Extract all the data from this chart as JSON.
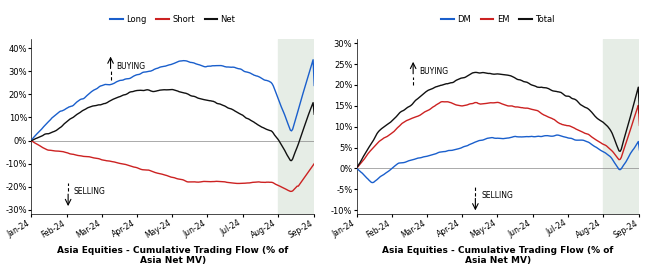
{
  "title": "Asia Equities - Cumulative Trading Flow (% of\nAsia Net MV)",
  "legend1": [
    "Long",
    "Short",
    "Net"
  ],
  "legend2": [
    "DM",
    "EM",
    "Total"
  ],
  "colors1": [
    "#1a5fcc",
    "#cc2222",
    "#111111"
  ],
  "colors2": [
    "#1a5fcc",
    "#cc2222",
    "#111111"
  ],
  "ylim1": [
    -32,
    44
  ],
  "ylim2": [
    -11,
    31
  ],
  "yticks1": [
    -30,
    -20,
    -10,
    0,
    10,
    20,
    30,
    40
  ],
  "yticks2": [
    -10,
    -5,
    0,
    5,
    10,
    15,
    20,
    25,
    30
  ],
  "xtick_labels": [
    "Jan-24",
    "Feb-24",
    "Mar-24",
    "Apr-24",
    "May-24",
    "Jun-24",
    "Jul-24",
    "Aug-24",
    "Sep-24"
  ],
  "shade_color": "#e6ede6",
  "background_color": "#ffffff",
  "n_points": 250
}
